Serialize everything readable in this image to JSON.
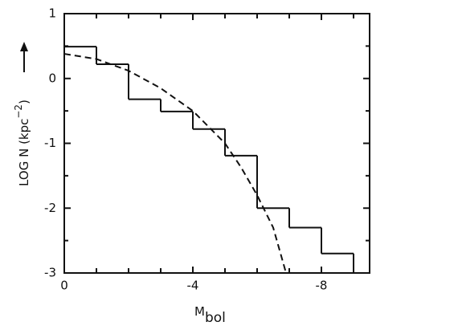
{
  "chart_data": {
    "type": "histogram",
    "bins": [
      0,
      -1,
      -2,
      -3,
      -4,
      -5,
      -6,
      -7,
      -8,
      -9
    ],
    "values": [
      0.49,
      0.22,
      -0.32,
      -0.51,
      -0.78,
      -1.19,
      -2.0,
      -2.3,
      -2.7
    ],
    "color": "#111111",
    "curve": {
      "type": "line",
      "style": "dashed",
      "color": "#111111",
      "x": [
        0,
        -1,
        -2,
        -3,
        -4,
        -5,
        -5.5,
        -6,
        -6.5,
        -6.9
      ],
      "values": [
        0.38,
        0.3,
        0.12,
        -0.15,
        -0.5,
        -1.0,
        -1.37,
        -1.8,
        -2.3,
        -3.0
      ]
    },
    "xlim": [
      0,
      -9.5
    ],
    "ylim": [
      -3,
      1
    ],
    "xticks": [
      0,
      -4,
      -8
    ],
    "xminorticks": [
      -1,
      -2,
      -3,
      -5,
      -6,
      -7,
      -9
    ],
    "yticks": [
      1,
      0,
      -1,
      -2,
      -3
    ],
    "yminorticks": [
      0.5,
      -0.5,
      -1.5,
      -2.5
    ],
    "xlabel": "M",
    "xlabel_sub": "bol",
    "ylabel": "LOG N (kpc",
    "ylabel_exp": "−2",
    "ylabel_end": ")"
  }
}
